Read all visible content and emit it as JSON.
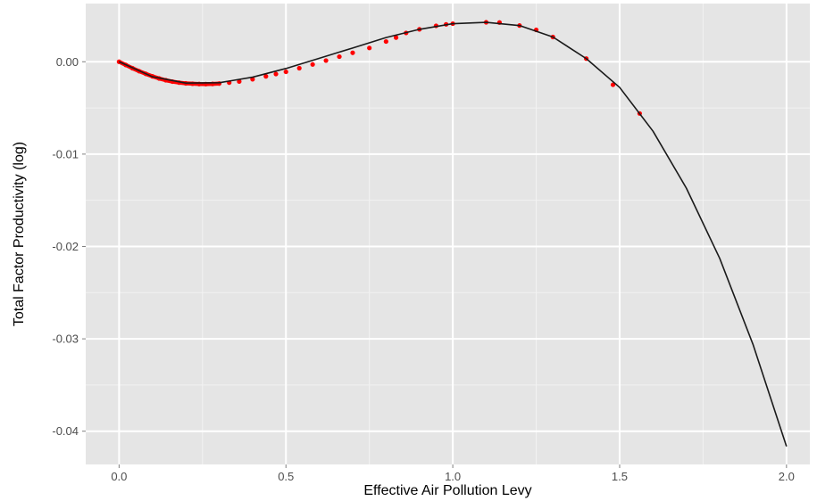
{
  "chart_data": {
    "type": "line",
    "title": "",
    "xlabel": "Effective Air Pollution Levy",
    "ylabel": "Total Factor Productivity (log)",
    "xlim": [
      -0.1,
      2.07
    ],
    "ylim": [
      -0.0436,
      0.0063
    ],
    "x_ticks": [
      0.0,
      0.5,
      1.0,
      1.5,
      2.0
    ],
    "x_tick_labels": [
      "0.0",
      "0.5",
      "1.0",
      "1.5",
      "2.0"
    ],
    "y_ticks": [
      0.0,
      -0.01,
      -0.02,
      -0.03,
      -0.04
    ],
    "y_tick_labels": [
      "0.00",
      "-0.01",
      "-0.02",
      "-0.03",
      "-0.04"
    ],
    "grid": true,
    "background": "#e5e5e5",
    "grid_color": "#ffffff",
    "series": [
      {
        "kind": "line",
        "color": "#1a1a1a",
        "x": [
          0.0,
          0.1,
          0.2,
          0.3,
          0.4,
          0.5,
          0.6,
          0.7,
          0.8,
          0.9,
          1.0,
          1.1,
          1.2,
          1.3,
          1.4,
          1.5,
          1.6,
          1.7,
          1.8,
          1.9,
          2.0
        ],
        "y": [
          0.0,
          -0.00162,
          -0.00231,
          -0.00227,
          -0.00167,
          -0.00073,
          0.00038,
          0.00149,
          0.00262,
          0.00351,
          0.00412,
          0.00427,
          0.00392,
          0.00268,
          0.00034,
          -0.00278,
          -0.00752,
          -0.01369,
          -0.0213,
          -0.03064,
          -0.04165
        ]
      },
      {
        "kind": "points",
        "color": "#ff0000",
        "x": [
          0.0,
          0.02,
          0.04,
          0.06,
          0.08,
          0.1,
          0.12,
          0.14,
          0.16,
          0.18,
          0.2,
          0.22,
          0.24,
          0.26,
          0.28,
          0.3,
          0.33,
          0.36,
          0.4,
          0.44,
          0.47,
          0.5,
          0.54,
          0.58,
          0.62,
          0.66,
          0.7,
          0.75,
          0.8,
          0.83,
          0.86,
          0.9,
          0.95,
          0.98,
          1.0,
          1.1,
          1.14,
          1.2,
          1.25,
          1.3,
          1.4,
          1.48,
          1.56
        ],
        "y": [
          0.0,
          -0.00035,
          -0.0007,
          -0.00102,
          -0.00131,
          -0.00158,
          -0.00181,
          -0.002,
          -0.00215,
          -0.00226,
          -0.00234,
          -0.00238,
          -0.00241,
          -0.00242,
          -0.0024,
          -0.00236,
          -0.00226,
          -0.00214,
          -0.00189,
          -0.00158,
          -0.00133,
          -0.00109,
          -0.0007,
          -0.00029,
          0.00013,
          0.00055,
          0.00097,
          0.00149,
          0.00219,
          0.00262,
          0.00312,
          0.00351,
          0.00389,
          0.00405,
          0.00412,
          0.00427,
          0.00425,
          0.00392,
          0.00345,
          0.00268,
          0.00034,
          -0.00249,
          -0.0056
        ]
      }
    ]
  }
}
